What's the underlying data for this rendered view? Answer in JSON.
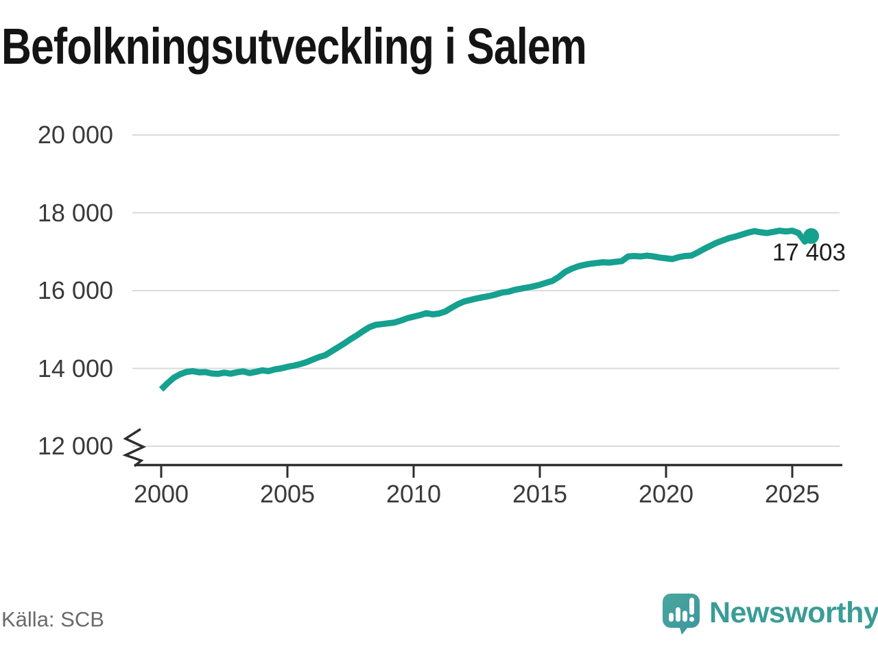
{
  "title": "Befolkningsutveckling i Salem",
  "source": "Källa: SCB",
  "brand": {
    "name": "Newsworthy",
    "logo_icon": "speech-bubble-bar-chart-exclamation"
  },
  "colors": {
    "line": "#16a08f",
    "marker": "#16a08f",
    "grid": "#dadada",
    "axis": "#2e2e2e",
    "tick_text": "#3a3a3a",
    "title_text": "#141414",
    "annotation_text": "#1d1d1d",
    "source_text": "#6a6a6e",
    "brand_teal": "#3a9d95",
    "logo_fill": "#3f9c98"
  },
  "chart_data": {
    "type": "line",
    "title": "Befolkningsutveckling i Salem",
    "xlabel": "",
    "ylabel": "",
    "legend": "none",
    "grid": "horizontal",
    "y_axis": {
      "shown_min": 12000,
      "shown_max": 20000,
      "tick_step": 2000,
      "axis_break_at_bottom": true
    },
    "x_axis": {
      "shown_min": 1999,
      "shown_max": 2027
    },
    "yticks": [
      {
        "value": 20000,
        "label": "20 000"
      },
      {
        "value": 18000,
        "label": "18 000"
      },
      {
        "value": 16000,
        "label": "16 000"
      },
      {
        "value": 14000,
        "label": "14 000"
      },
      {
        "value": 12000,
        "label": "12 000"
      }
    ],
    "xticks": [
      {
        "value": 2000,
        "label": "2000"
      },
      {
        "value": 2005,
        "label": "2005"
      },
      {
        "value": 2010,
        "label": "2010"
      },
      {
        "value": 2015,
        "label": "2015"
      },
      {
        "value": 2020,
        "label": "2020"
      },
      {
        "value": 2025,
        "label": "2025"
      }
    ],
    "end_label": "17 403",
    "end_value": 17403,
    "series": [
      {
        "x_start": 2000,
        "x_step_years": 0.25,
        "values": [
          13460,
          13620,
          13760,
          13850,
          13910,
          13930,
          13900,
          13905,
          13870,
          13860,
          13890,
          13865,
          13900,
          13925,
          13880,
          13910,
          13950,
          13930,
          13975,
          14000,
          14040,
          14070,
          14110,
          14160,
          14225,
          14290,
          14340,
          14440,
          14540,
          14640,
          14750,
          14850,
          14960,
          15060,
          15120,
          15140,
          15160,
          15180,
          15230,
          15290,
          15330,
          15370,
          15420,
          15390,
          15410,
          15460,
          15560,
          15650,
          15720,
          15760,
          15800,
          15830,
          15860,
          15900,
          15950,
          15970,
          16020,
          16050,
          16080,
          16110,
          16150,
          16200,
          16250,
          16350,
          16480,
          16560,
          16620,
          16660,
          16690,
          16710,
          16730,
          16720,
          16740,
          16760,
          16880,
          16890,
          16880,
          16900,
          16880,
          16850,
          16830,
          16810,
          16860,
          16890,
          16900,
          16980,
          17070,
          17150,
          17230,
          17290,
          17350,
          17390,
          17440,
          17490,
          17530,
          17500,
          17480,
          17510,
          17540,
          17520,
          17540,
          17480,
          17260,
          17403
        ]
      }
    ]
  }
}
